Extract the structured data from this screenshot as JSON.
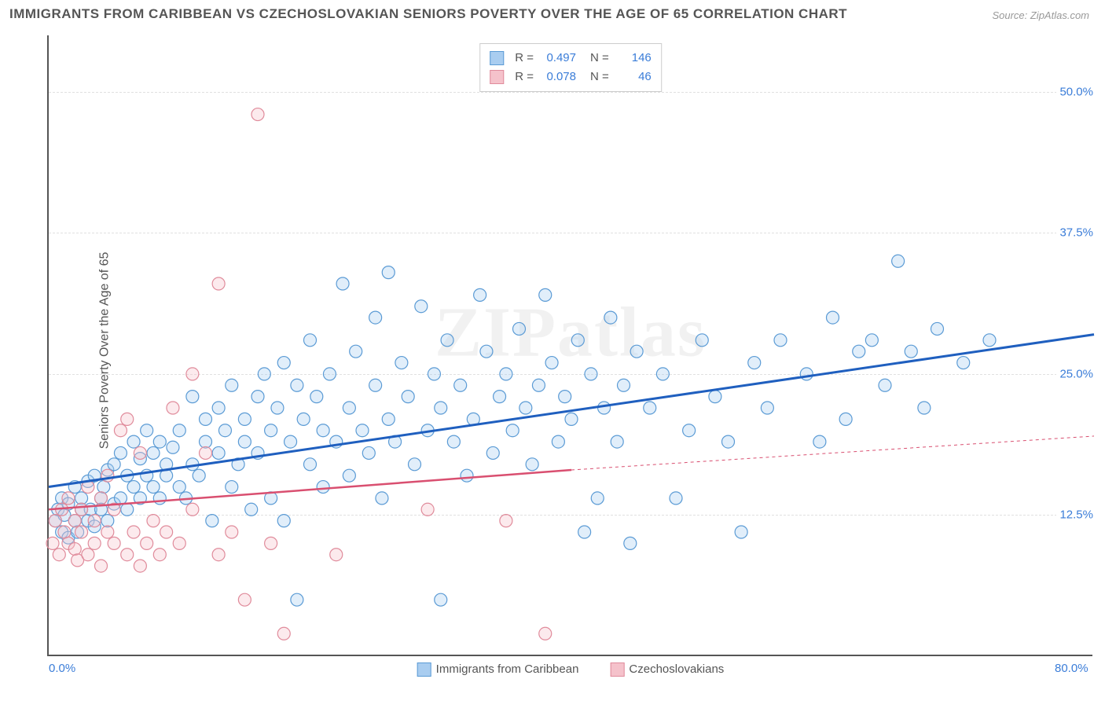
{
  "title": "IMMIGRANTS FROM CARIBBEAN VS CZECHOSLOVAKIAN SENIORS POVERTY OVER THE AGE OF 65 CORRELATION CHART",
  "source_label": "Source: ZipAtlas.com",
  "y_axis_label": "Seniors Poverty Over the Age of 65",
  "watermark": "ZIPatlas",
  "chart": {
    "type": "scatter",
    "xlim": [
      0,
      80
    ],
    "ylim": [
      0,
      55
    ],
    "x_ticks": [
      {
        "value": 0,
        "label": "0.0%"
      },
      {
        "value": 80,
        "label": "80.0%"
      }
    ],
    "y_ticks": [
      {
        "value": 12.5,
        "label": "12.5%"
      },
      {
        "value": 25.0,
        "label": "25.0%"
      },
      {
        "value": 37.5,
        "label": "37.5%"
      },
      {
        "value": 50.0,
        "label": "50.0%"
      }
    ],
    "grid_color": "#e0e0e0",
    "axis_color": "#555555",
    "background_color": "#ffffff",
    "marker_radius": 8,
    "marker_stroke_width": 1.2,
    "tick_label_color": "#3b7dd8",
    "tick_fontsize": 15
  },
  "series": [
    {
      "id": "caribbean",
      "label": "Immigrants from Caribbean",
      "color_fill": "#a9cdf0",
      "color_stroke": "#5b9bd5",
      "stats": {
        "R": "0.497",
        "N": "146"
      },
      "trend": {
        "x1": 0,
        "y1": 15,
        "x2": 80,
        "y2": 28.5,
        "color": "#1f5fbf",
        "width": 3,
        "dash": null,
        "extra_dash_to": null
      },
      "points": [
        [
          0.5,
          12
        ],
        [
          0.7,
          13
        ],
        [
          1,
          11
        ],
        [
          1,
          14
        ],
        [
          1.2,
          12.5
        ],
        [
          1.5,
          13.5
        ],
        [
          1.5,
          10.5
        ],
        [
          2,
          12
        ],
        [
          2,
          15
        ],
        [
          2.2,
          11
        ],
        [
          2.5,
          14
        ],
        [
          2.5,
          13
        ],
        [
          3,
          12
        ],
        [
          3,
          15.5
        ],
        [
          3.2,
          13
        ],
        [
          3.5,
          11.5
        ],
        [
          3.5,
          16
        ],
        [
          4,
          14
        ],
        [
          4,
          13
        ],
        [
          4.2,
          15
        ],
        [
          4.5,
          16.5
        ],
        [
          4.5,
          12
        ],
        [
          5,
          13.5
        ],
        [
          5,
          17
        ],
        [
          5.5,
          14
        ],
        [
          5.5,
          18
        ],
        [
          6,
          13
        ],
        [
          6,
          16
        ],
        [
          6.5,
          15
        ],
        [
          6.5,
          19
        ],
        [
          7,
          14
        ],
        [
          7,
          17.5
        ],
        [
          7.5,
          16
        ],
        [
          7.5,
          20
        ],
        [
          8,
          15
        ],
        [
          8,
          18
        ],
        [
          8.5,
          14
        ],
        [
          8.5,
          19
        ],
        [
          9,
          16
        ],
        [
          9,
          17
        ],
        [
          9.5,
          18.5
        ],
        [
          10,
          15
        ],
        [
          10,
          20
        ],
        [
          10.5,
          14
        ],
        [
          11,
          17
        ],
        [
          11,
          23
        ],
        [
          11.5,
          16
        ],
        [
          12,
          19
        ],
        [
          12,
          21
        ],
        [
          12.5,
          12
        ],
        [
          13,
          18
        ],
        [
          13,
          22
        ],
        [
          13.5,
          20
        ],
        [
          14,
          24
        ],
        [
          14,
          15
        ],
        [
          14.5,
          17
        ],
        [
          15,
          21
        ],
        [
          15,
          19
        ],
        [
          15.5,
          13
        ],
        [
          16,
          23
        ],
        [
          16,
          18
        ],
        [
          16.5,
          25
        ],
        [
          17,
          20
        ],
        [
          17,
          14
        ],
        [
          17.5,
          22
        ],
        [
          18,
          12
        ],
        [
          18,
          26
        ],
        [
          18.5,
          19
        ],
        [
          19,
          24
        ],
        [
          19,
          5
        ],
        [
          19.5,
          21
        ],
        [
          20,
          17
        ],
        [
          20,
          28
        ],
        [
          20.5,
          23
        ],
        [
          21,
          15
        ],
        [
          21,
          20
        ],
        [
          21.5,
          25
        ],
        [
          22,
          19
        ],
        [
          22.5,
          33
        ],
        [
          23,
          22
        ],
        [
          23,
          16
        ],
        [
          23.5,
          27
        ],
        [
          24,
          20
        ],
        [
          24.5,
          18
        ],
        [
          25,
          24
        ],
        [
          25,
          30
        ],
        [
          25.5,
          14
        ],
        [
          26,
          21
        ],
        [
          26,
          34
        ],
        [
          26.5,
          19
        ],
        [
          27,
          26
        ],
        [
          27.5,
          23
        ],
        [
          28,
          17
        ],
        [
          28.5,
          31
        ],
        [
          29,
          20
        ],
        [
          29.5,
          25
        ],
        [
          30,
          5
        ],
        [
          30,
          22
        ],
        [
          30.5,
          28
        ],
        [
          31,
          19
        ],
        [
          31.5,
          24
        ],
        [
          32,
          16
        ],
        [
          32.5,
          21
        ],
        [
          33,
          32
        ],
        [
          33.5,
          27
        ],
        [
          34,
          18
        ],
        [
          34.5,
          23
        ],
        [
          35,
          25
        ],
        [
          35.5,
          20
        ],
        [
          36,
          29
        ],
        [
          36.5,
          22
        ],
        [
          37,
          17
        ],
        [
          37.5,
          24
        ],
        [
          38,
          32
        ],
        [
          38.5,
          26
        ],
        [
          39,
          19
        ],
        [
          39.5,
          23
        ],
        [
          40,
          21
        ],
        [
          40.5,
          28
        ],
        [
          41,
          11
        ],
        [
          41.5,
          25
        ],
        [
          42,
          14
        ],
        [
          42.5,
          22
        ],
        [
          43,
          30
        ],
        [
          43.5,
          19
        ],
        [
          44,
          24
        ],
        [
          44.5,
          10
        ],
        [
          45,
          27
        ],
        [
          46,
          22
        ],
        [
          47,
          25
        ],
        [
          48,
          14
        ],
        [
          49,
          20
        ],
        [
          50,
          28
        ],
        [
          51,
          23
        ],
        [
          52,
          19
        ],
        [
          53,
          11
        ],
        [
          54,
          26
        ],
        [
          55,
          22
        ],
        [
          56,
          28
        ],
        [
          58,
          25
        ],
        [
          59,
          19
        ],
        [
          60,
          30
        ],
        [
          61,
          21
        ],
        [
          62,
          27
        ],
        [
          63,
          28
        ],
        [
          64,
          24
        ],
        [
          65,
          35
        ],
        [
          66,
          27
        ],
        [
          67,
          22
        ],
        [
          68,
          29
        ],
        [
          70,
          26
        ],
        [
          72,
          28
        ]
      ]
    },
    {
      "id": "czech",
      "label": "Czechoslovakians",
      "color_fill": "#f5c2cb",
      "color_stroke": "#e08b9b",
      "stats": {
        "R": "0.078",
        "N": "46"
      },
      "trend": {
        "x1": 0,
        "y1": 13,
        "x2": 40,
        "y2": 16.5,
        "color": "#d94f70",
        "width": 2.5,
        "dash": null,
        "extra_dash_to": 80,
        "extra_dash_y": 19.5
      },
      "points": [
        [
          0.3,
          10
        ],
        [
          0.5,
          12
        ],
        [
          0.8,
          9
        ],
        [
          1,
          13
        ],
        [
          1.2,
          11
        ],
        [
          1.5,
          10
        ],
        [
          1.5,
          14
        ],
        [
          2,
          9.5
        ],
        [
          2,
          12
        ],
        [
          2.2,
          8.5
        ],
        [
          2.5,
          11
        ],
        [
          2.5,
          13
        ],
        [
          3,
          9
        ],
        [
          3,
          15
        ],
        [
          3.5,
          10
        ],
        [
          3.5,
          12
        ],
        [
          4,
          8
        ],
        [
          4,
          14
        ],
        [
          4.5,
          11
        ],
        [
          4.5,
          16
        ],
        [
          5,
          10
        ],
        [
          5,
          13
        ],
        [
          5.5,
          20
        ],
        [
          6,
          9
        ],
        [
          6,
          21
        ],
        [
          6.5,
          11
        ],
        [
          7,
          8
        ],
        [
          7,
          18
        ],
        [
          7.5,
          10
        ],
        [
          8,
          12
        ],
        [
          8.5,
          9
        ],
        [
          9,
          11
        ],
        [
          9.5,
          22
        ],
        [
          10,
          10
        ],
        [
          11,
          13
        ],
        [
          11,
          25
        ],
        [
          12,
          18
        ],
        [
          13,
          9
        ],
        [
          13,
          33
        ],
        [
          14,
          11
        ],
        [
          15,
          5
        ],
        [
          16,
          48
        ],
        [
          17,
          10
        ],
        [
          18,
          2
        ],
        [
          22,
          9
        ],
        [
          29,
          13
        ],
        [
          35,
          12
        ],
        [
          38,
          2
        ]
      ]
    }
  ],
  "top_legend": {
    "R_label": "R =",
    "N_label": "N ="
  }
}
